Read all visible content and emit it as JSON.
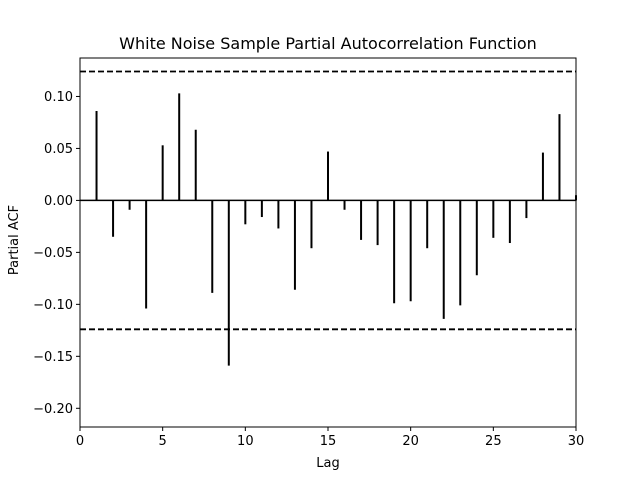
{
  "chart_data": {
    "type": "bar",
    "title": "White Noise Sample Partial Autocorrelation Function",
    "xlabel": "Lag",
    "ylabel": "Partial ACF",
    "xlim": [
      0,
      30
    ],
    "ylim": [
      -0.218,
      0.137
    ],
    "xticks": [
      0,
      5,
      10,
      15,
      20,
      25,
      30
    ],
    "xtick_labels": [
      "0",
      "5",
      "10",
      "15",
      "20",
      "25",
      "30"
    ],
    "yticks": [
      0.1,
      0.05,
      0.0,
      -0.05,
      -0.1,
      -0.15,
      -0.2
    ],
    "ytick_labels": [
      "0.10",
      "0.05",
      "0.00",
      "−0.05",
      "−0.10",
      "−0.15",
      "−0.20"
    ],
    "confidence_bounds": [
      0.124,
      -0.124
    ],
    "grid": false,
    "lags": [
      1,
      2,
      3,
      4,
      5,
      6,
      7,
      8,
      9,
      10,
      11,
      12,
      13,
      14,
      15,
      16,
      17,
      18,
      19,
      20,
      21,
      22,
      23,
      24,
      25,
      26,
      27,
      28,
      29,
      30
    ],
    "values": [
      0.086,
      -0.035,
      -0.009,
      -0.104,
      0.053,
      0.103,
      0.068,
      -0.089,
      -0.159,
      -0.023,
      -0.016,
      -0.027,
      -0.086,
      -0.046,
      0.047,
      -0.009,
      -0.038,
      -0.043,
      -0.099,
      -0.097,
      -0.046,
      -0.114,
      -0.101,
      -0.072,
      -0.036,
      -0.041,
      -0.017,
      0.046,
      0.083,
      0.005
    ]
  }
}
